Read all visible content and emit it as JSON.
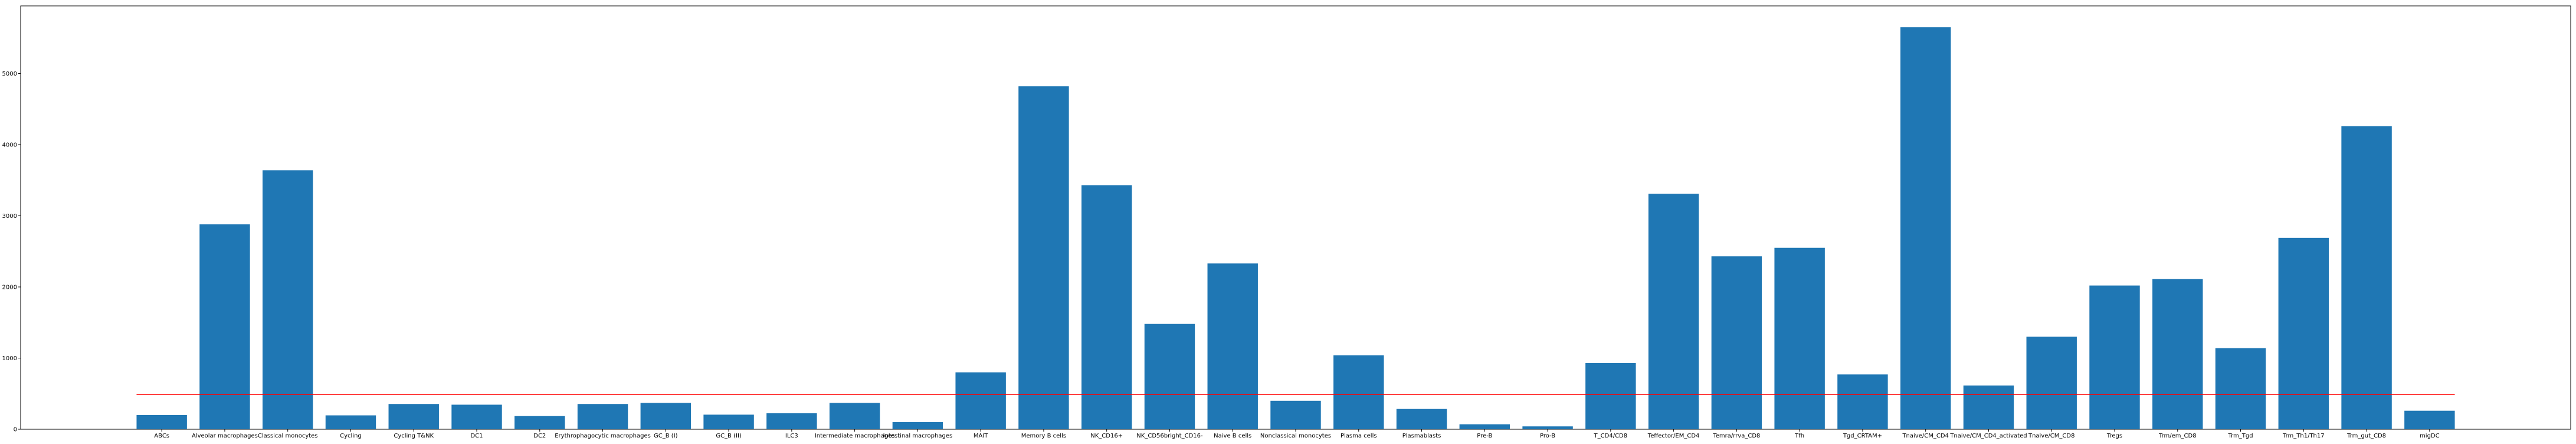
{
  "chart_data": {
    "type": "bar",
    "title": "",
    "xlabel": "",
    "ylabel": "",
    "ylim": [
      0,
      5950
    ],
    "yticks": [
      0,
      1000,
      2000,
      3000,
      4000,
      5000
    ],
    "bar_color": "#1f77b4",
    "reference_line": {
      "value": 490,
      "color": "#ff0000"
    },
    "categories": [
      "ABCs",
      "Alveolar macrophages",
      "Classical monocytes",
      "Cycling",
      "Cycling T&NK",
      "DC1",
      "DC2",
      "Erythrophagocytic macrophages",
      "GC_B (I)",
      "GC_B (II)",
      "ILC3",
      "Intermediate macrophages",
      "Intestinal macrophages",
      "MAIT",
      "Memory B cells",
      "NK_CD16+",
      "NK_CD56bright_CD16-",
      "Naive B cells",
      "Nonclassical monocytes",
      "Plasma cells",
      "Plasmablasts",
      "Pre-B",
      "Pro-B",
      "T_CD4/CD8",
      "Teffector/EM_CD4",
      "Temra/rrva_CD8",
      "Tfh",
      "Tgd_CRTAM+",
      "Tnaive/CM_CD4",
      "Tnaive/CM_CD4_activated",
      "Tnaive/CM_CD8",
      "Tregs",
      "Trm/em_CD8",
      "Trm_Tgd",
      "Trm_Th1/Th17",
      "Trm_gut_CD8",
      "migDC"
    ],
    "values": [
      200,
      2880,
      3640,
      195,
      355,
      345,
      185,
      355,
      370,
      205,
      225,
      370,
      100,
      800,
      4820,
      3430,
      1480,
      2330,
      400,
      1040,
      285,
      70,
      40,
      930,
      3310,
      2430,
      2550,
      770,
      5650,
      615,
      1300,
      2020,
      2110,
      1140,
      2690,
      4260,
      260
    ]
  }
}
